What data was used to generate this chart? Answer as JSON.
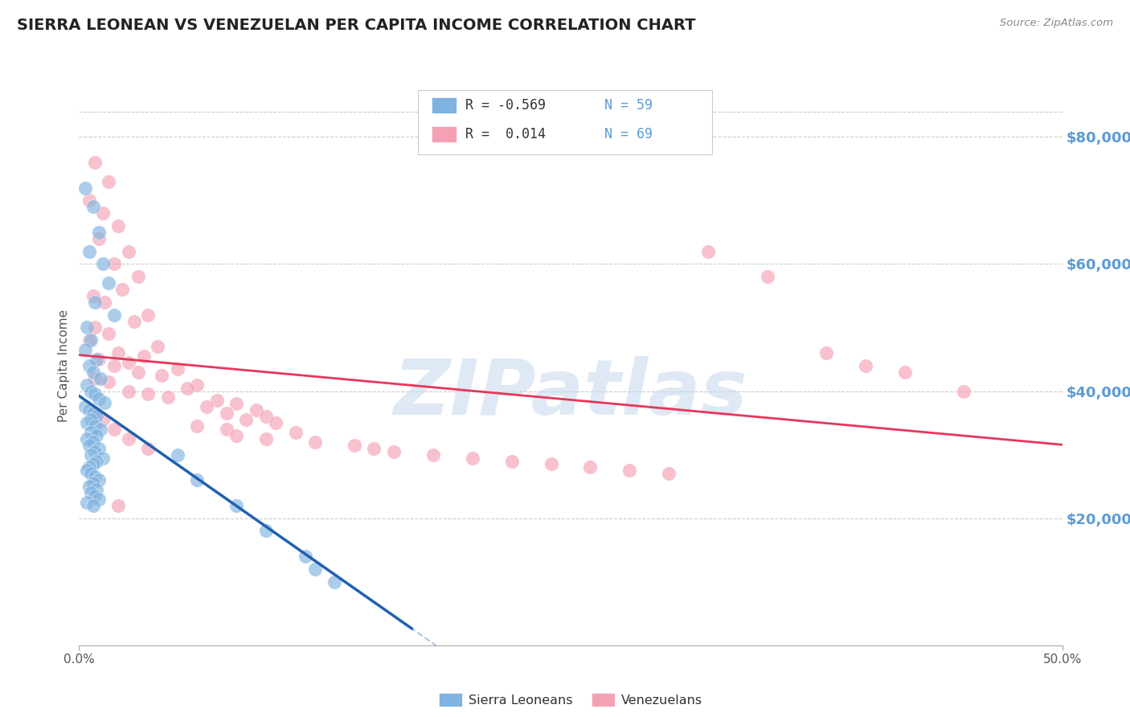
{
  "title": "SIERRA LEONEAN VS VENEZUELAN PER CAPITA INCOME CORRELATION CHART",
  "source": "Source: ZipAtlas.com",
  "ylabel": "Per Capita Income",
  "watermark": "ZIPatlas",
  "legend_r1": "R = -0.569",
  "legend_n1": "N = 59",
  "legend_r2": "R =  0.014",
  "legend_n2": "N = 69",
  "ytick_labels": [
    "$20,000",
    "$40,000",
    "$60,000",
    "$80,000"
  ],
  "ytick_values": [
    20000,
    40000,
    60000,
    80000
  ],
  "xlim": [
    0.0,
    0.5
  ],
  "ylim": [
    0,
    88000
  ],
  "sierra_color": "#7fb3e0",
  "venezuela_color": "#f4a0b5",
  "sierra_line_color": "#2060b0",
  "venezuela_line_color": "#e8365a",
  "sierra_scatter_x": [
    0.003,
    0.007,
    0.01,
    0.005,
    0.012,
    0.015,
    0.008,
    0.018,
    0.004,
    0.006,
    0.003,
    0.009,
    0.005,
    0.007,
    0.011,
    0.004,
    0.006,
    0.008,
    0.01,
    0.013,
    0.003,
    0.005,
    0.007,
    0.009,
    0.006,
    0.004,
    0.008,
    0.011,
    0.006,
    0.009,
    0.004,
    0.007,
    0.005,
    0.01,
    0.008,
    0.006,
    0.012,
    0.009,
    0.007,
    0.005,
    0.004,
    0.006,
    0.008,
    0.01,
    0.007,
    0.005,
    0.009,
    0.006,
    0.008,
    0.01,
    0.004,
    0.007,
    0.05,
    0.06,
    0.08,
    0.095,
    0.115,
    0.12,
    0.13
  ],
  "sierra_scatter_y": [
    72000,
    69000,
    65000,
    62000,
    60000,
    57000,
    54000,
    52000,
    50000,
    48000,
    46500,
    45000,
    44000,
    43000,
    42000,
    41000,
    40000,
    39500,
    38800,
    38200,
    37500,
    37000,
    36500,
    36000,
    35500,
    35000,
    34500,
    34000,
    33500,
    33000,
    32500,
    32000,
    31500,
    31000,
    30500,
    30000,
    29500,
    29000,
    28500,
    28000,
    27500,
    27000,
    26500,
    26000,
    25500,
    25000,
    24500,
    24000,
    23500,
    23000,
    22500,
    22000,
    30000,
    26000,
    22000,
    18000,
    14000,
    12000,
    10000
  ],
  "venezuela_scatter_x": [
    0.008,
    0.015,
    0.005,
    0.012,
    0.02,
    0.01,
    0.025,
    0.018,
    0.03,
    0.022,
    0.007,
    0.013,
    0.035,
    0.028,
    0.008,
    0.015,
    0.005,
    0.04,
    0.02,
    0.033,
    0.01,
    0.025,
    0.018,
    0.05,
    0.03,
    0.042,
    0.008,
    0.015,
    0.06,
    0.055,
    0.025,
    0.035,
    0.045,
    0.07,
    0.08,
    0.065,
    0.09,
    0.075,
    0.095,
    0.085,
    0.1,
    0.06,
    0.075,
    0.11,
    0.08,
    0.095,
    0.12,
    0.14,
    0.15,
    0.16,
    0.18,
    0.2,
    0.22,
    0.24,
    0.26,
    0.28,
    0.3,
    0.32,
    0.35,
    0.38,
    0.4,
    0.42,
    0.45,
    0.008,
    0.012,
    0.018,
    0.025,
    0.035,
    0.02
  ],
  "venezuela_scatter_y": [
    76000,
    73000,
    70000,
    68000,
    66000,
    64000,
    62000,
    60000,
    58000,
    56000,
    55000,
    54000,
    52000,
    51000,
    50000,
    49000,
    48000,
    47000,
    46000,
    45500,
    45000,
    44500,
    44000,
    43500,
    43000,
    42500,
    42000,
    41500,
    41000,
    40500,
    40000,
    39500,
    39000,
    38500,
    38000,
    37500,
    37000,
    36500,
    36000,
    35500,
    35000,
    34500,
    34000,
    33500,
    33000,
    32500,
    32000,
    31500,
    31000,
    30500,
    30000,
    29500,
    29000,
    28500,
    28000,
    27500,
    27000,
    62000,
    58000,
    46000,
    44000,
    43000,
    40000,
    36500,
    35500,
    34000,
    32500,
    31000,
    22000
  ]
}
